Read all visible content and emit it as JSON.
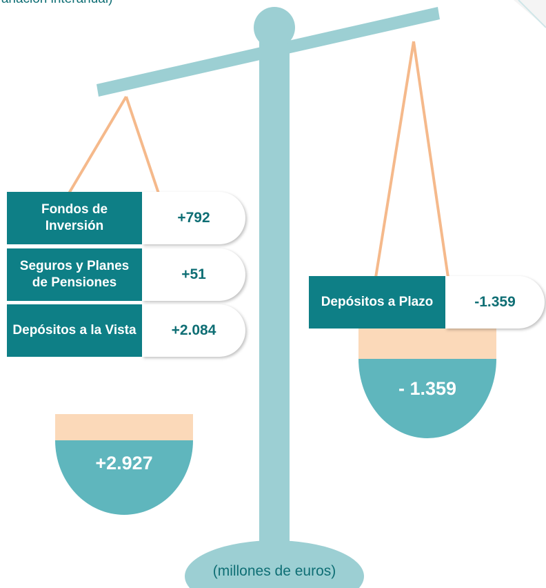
{
  "subtitle": "(variación interanual)",
  "left": {
    "items": [
      {
        "label": "Fondos de Inversión",
        "value": "+792"
      },
      {
        "label": "Seguros y Planes de Pensiones",
        "value": "+51"
      },
      {
        "label": "Depósitos a la Vista",
        "value": "+2.084"
      }
    ],
    "total": "+2.927"
  },
  "right": {
    "items": [
      {
        "label": "Depósitos a Plazo",
        "value": "-1.359"
      }
    ],
    "total": "- 1.359"
  },
  "footer": "(millones de euros)"
}
